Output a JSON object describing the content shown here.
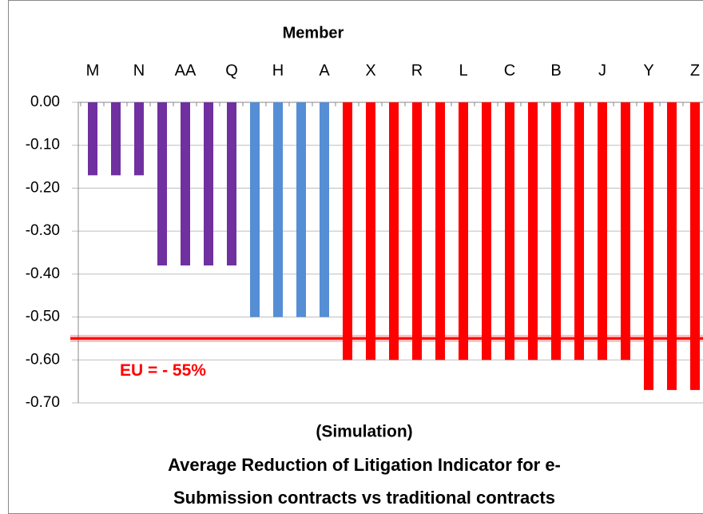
{
  "chart_data": {
    "type": "bar",
    "title": [
      "Average Reduction of Litigation Indicator  for e-",
      "Submission contracts vs traditional contracts"
    ],
    "subtitle": "(Simulation)",
    "x_label": "Member",
    "categories": [
      "M",
      null,
      "N",
      null,
      "AA",
      null,
      "Q",
      null,
      "H",
      null,
      "A",
      null,
      "X",
      null,
      "R",
      null,
      "L",
      null,
      "C",
      null,
      "B",
      null,
      "J",
      null,
      "Y",
      null,
      "Z"
    ],
    "values": [
      -0.17,
      -0.17,
      -0.17,
      -0.38,
      -0.38,
      -0.38,
      -0.38,
      -0.5,
      -0.5,
      -0.5,
      -0.5,
      -0.6,
      -0.6,
      -0.6,
      -0.6,
      -0.6,
      -0.6,
      -0.6,
      -0.6,
      -0.6,
      -0.6,
      -0.6,
      -0.6,
      -0.6,
      -0.67,
      -0.67,
      -0.67
    ],
    "colors": [
      "#7030a0",
      "#7030a0",
      "#7030a0",
      "#7030a0",
      "#7030a0",
      "#7030a0",
      "#7030a0",
      "#558ed5",
      "#558ed5",
      "#558ed5",
      "#558ed5",
      "#ff0000",
      "#ff0000",
      "#ff0000",
      "#ff0000",
      "#ff0000",
      "#ff0000",
      "#ff0000",
      "#ff0000",
      "#ff0000",
      "#ff0000",
      "#ff0000",
      "#ff0000",
      "#ff0000",
      "#ff0000",
      "#ff0000",
      "#ff0000"
    ],
    "ylim": [
      -0.7,
      0
    ],
    "yticks": [
      {
        "value": 0,
        "label": "0.00"
      },
      {
        "value": -0.1,
        "label": "-0.10"
      },
      {
        "value": -0.2,
        "label": "-0.20"
      },
      {
        "value": -0.3,
        "label": "-0.30"
      },
      {
        "value": -0.4,
        "label": "-0.40"
      },
      {
        "value": -0.5,
        "label": "-0.50"
      },
      {
        "value": -0.6,
        "label": "-0.60"
      },
      {
        "value": -0.7,
        "label": "-0.70"
      }
    ],
    "grid": true,
    "reference_line": {
      "value": -0.55,
      "label": "EU = - 55%",
      "color": "#ff0000"
    }
  }
}
